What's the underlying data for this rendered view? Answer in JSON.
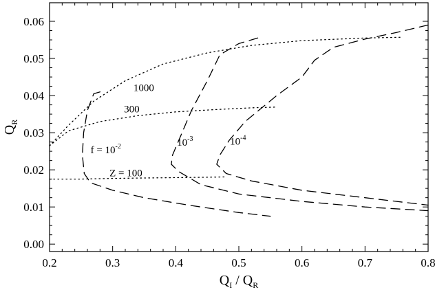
{
  "chart_data": {
    "type": "line",
    "title": "",
    "xlabel": "Q_I / Q_R",
    "ylabel": "Q_R",
    "xlim": [
      0.2,
      0.8
    ],
    "ylim": [
      -0.002,
      0.065
    ],
    "grid": false,
    "legend": "none",
    "xticks": [
      0.2,
      0.3,
      0.4,
      0.5,
      0.6,
      0.7,
      0.8
    ],
    "xtick_labels": [
      "0.2",
      "0.3",
      "0.4",
      "0.5",
      "0.6",
      "0.7",
      "0.8"
    ],
    "yticks": [
      0.0,
      0.01,
      0.02,
      0.03,
      0.04,
      0.05,
      0.06
    ],
    "ytick_labels": [
      "0.00",
      "0.01",
      "0.02",
      "0.03",
      "0.04",
      "0.05",
      "0.06"
    ],
    "series": [
      {
        "style": "dotted",
        "points": [
          [
            0.2,
            0.0265
          ],
          [
            0.23,
            0.032
          ],
          [
            0.27,
            0.0385
          ],
          [
            0.32,
            0.044
          ],
          [
            0.38,
            0.0485
          ],
          [
            0.45,
            0.0515
          ],
          [
            0.52,
            0.0535
          ],
          [
            0.6,
            0.0548
          ],
          [
            0.7,
            0.0555
          ],
          [
            0.76,
            0.0557
          ]
        ]
      },
      {
        "style": "dotted",
        "points": [
          [
            0.2,
            0.0265
          ],
          [
            0.23,
            0.0305
          ],
          [
            0.28,
            0.033
          ],
          [
            0.34,
            0.0346
          ],
          [
            0.4,
            0.0356
          ],
          [
            0.46,
            0.0362
          ],
          [
            0.52,
            0.0367
          ],
          [
            0.56,
            0.0369
          ]
        ]
      },
      {
        "style": "dotted",
        "points": [
          [
            0.2,
            0.0175
          ],
          [
            0.25,
            0.0175
          ],
          [
            0.3,
            0.0177
          ],
          [
            0.35,
            0.0178
          ],
          [
            0.4,
            0.0179
          ],
          [
            0.45,
            0.018
          ],
          [
            0.48,
            0.0181
          ]
        ]
      },
      {
        "style": "dashed",
        "points": [
          [
            0.28,
            0.041
          ],
          [
            0.27,
            0.0405
          ],
          [
            0.26,
            0.036
          ],
          [
            0.254,
            0.03
          ],
          [
            0.252,
            0.024
          ],
          [
            0.255,
            0.019
          ],
          [
            0.265,
            0.0165
          ],
          [
            0.3,
            0.0145
          ],
          [
            0.35,
            0.0125
          ],
          [
            0.42,
            0.0105
          ],
          [
            0.5,
            0.0085
          ],
          [
            0.55,
            0.0075
          ]
        ]
      },
      {
        "style": "dashed",
        "points": [
          [
            0.53,
            0.0555
          ],
          [
            0.5,
            0.054
          ],
          [
            0.47,
            0.051
          ],
          [
            0.45,
            0.044
          ],
          [
            0.425,
            0.036
          ],
          [
            0.41,
            0.03
          ],
          [
            0.395,
            0.024
          ],
          [
            0.393,
            0.0215
          ],
          [
            0.405,
            0.0195
          ],
          [
            0.44,
            0.016
          ],
          [
            0.5,
            0.0135
          ],
          [
            0.6,
            0.0115
          ],
          [
            0.7,
            0.01
          ],
          [
            0.8,
            0.009
          ]
        ]
      },
      {
        "style": "dashed",
        "points": [
          [
            0.8,
            0.059
          ],
          [
            0.75,
            0.057
          ],
          [
            0.7,
            0.0552
          ],
          [
            0.65,
            0.053
          ],
          [
            0.62,
            0.0495
          ],
          [
            0.6,
            0.045
          ],
          [
            0.56,
            0.04
          ],
          [
            0.51,
            0.033
          ],
          [
            0.485,
            0.028
          ],
          [
            0.47,
            0.024
          ],
          [
            0.465,
            0.0215
          ],
          [
            0.48,
            0.019
          ],
          [
            0.52,
            0.017
          ],
          [
            0.6,
            0.0145
          ],
          [
            0.7,
            0.0125
          ],
          [
            0.8,
            0.0105
          ]
        ]
      }
    ],
    "annotations": [
      {
        "text": "1000",
        "x": 0.333,
        "y": 0.0412
      },
      {
        "text": "300",
        "x": 0.318,
        "y": 0.0355
      },
      {
        "text": "Z = 100",
        "x": 0.295,
        "y": 0.0183
      },
      {
        "text": "f = 10",
        "sup": "-2",
        "x": 0.265,
        "y": 0.0245
      },
      {
        "text": "10",
        "sup": "-3",
        "x": 0.402,
        "y": 0.0265
      },
      {
        "text": "10",
        "sup": "-4",
        "x": 0.486,
        "y": 0.0268
      }
    ]
  }
}
